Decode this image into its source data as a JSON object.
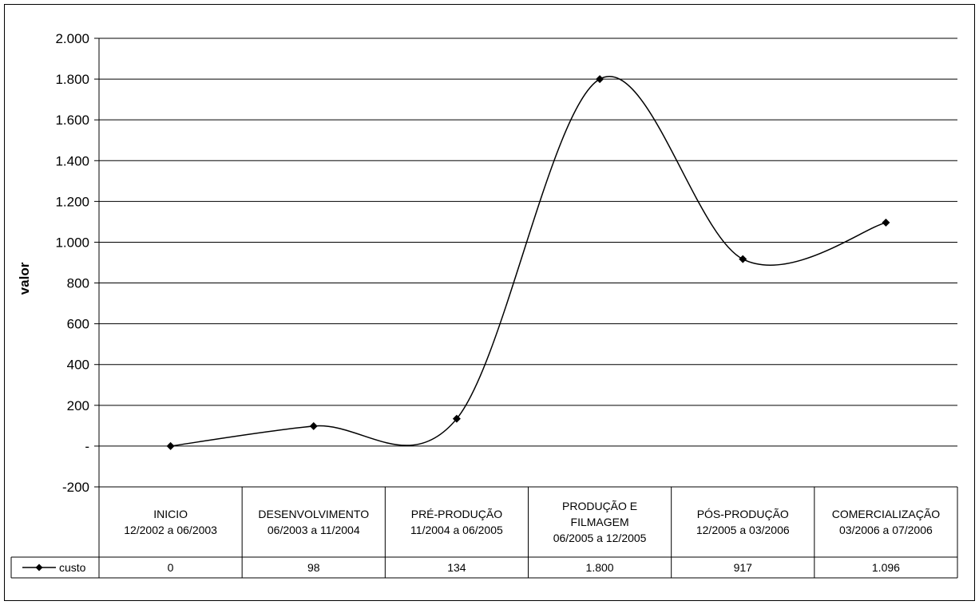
{
  "chart_data": {
    "type": "line",
    "title": "",
    "xlabel": "",
    "ylabel": "valor",
    "ylim": [
      -200,
      2000
    ],
    "ytick_step": 200,
    "ytick_labels": [
      "-200",
      "-",
      "200",
      "400",
      "600",
      "800",
      "1.000",
      "1.200",
      "1.400",
      "1.600",
      "1.800",
      "2.000"
    ],
    "grid": true,
    "smooth": true,
    "categories": [
      [
        "INICIO",
        "12/2002 a 06/2003"
      ],
      [
        "DESENVOLVIMENTO",
        "06/2003 a 11/2004"
      ],
      [
        "PRÉ-PRODUÇÃO",
        "11/2004 a 06/2005"
      ],
      [
        "PRODUÇÃO E",
        "FILMAGEM",
        "06/2005 a 12/2005"
      ],
      [
        "PÓS-PRODUÇÃO",
        "12/2005 a 03/2006"
      ],
      [
        "COMERCIALIZAÇÃO",
        "03/2006 a 07/2006"
      ]
    ],
    "series": [
      {
        "name": "custo",
        "values": [
          0,
          98,
          134,
          1800,
          917,
          1096
        ],
        "labels": [
          "0",
          "98",
          "134",
          "1.800",
          "917",
          "1.096"
        ],
        "color": "#000000",
        "marker": "diamond"
      }
    ],
    "legend": "data-table-left"
  }
}
